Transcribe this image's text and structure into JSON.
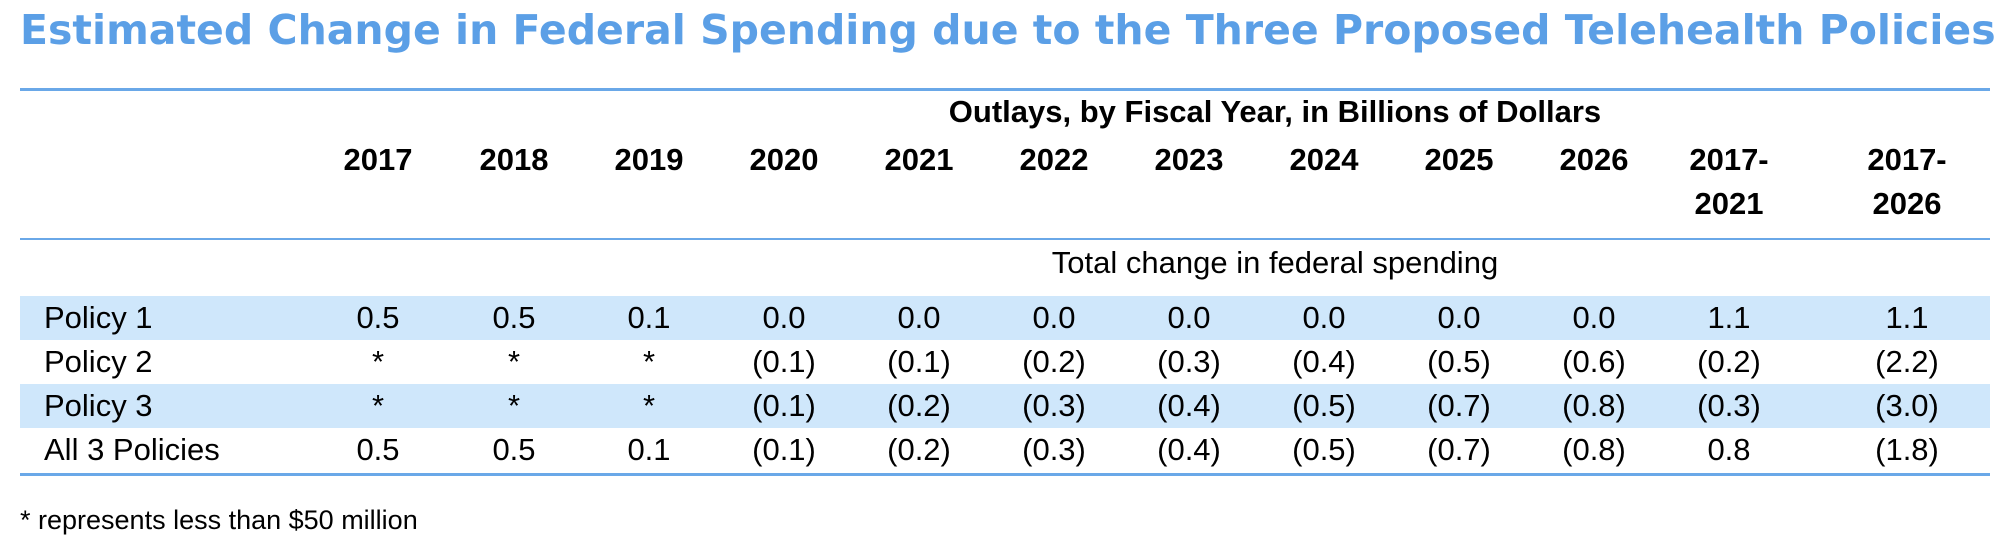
{
  "title": "Estimated Change in Federal Spending due to the Three Proposed Telehealth Policies",
  "table": {
    "super_header": "Outlays, by Fiscal Year, in Billions of Dollars",
    "columns": [
      "2017",
      "2018",
      "2019",
      "2020",
      "2021",
      "2022",
      "2023",
      "2024",
      "2025",
      "2026",
      "2017-\n2021",
      "2017-\n2026"
    ],
    "section_title": "Total change in federal spending",
    "rows": [
      {
        "label": "Policy 1",
        "values": [
          "0.5",
          "0.5",
          "0.1",
          "0.0",
          "0.0",
          "0.0",
          "0.0",
          "0.0",
          "0.0",
          "0.0",
          "1.1",
          "1.1"
        ]
      },
      {
        "label": "Policy 2",
        "values": [
          "*",
          "*",
          "*",
          "(0.1)",
          "(0.1)",
          "(0.2)",
          "(0.3)",
          "(0.4)",
          "(0.5)",
          "(0.6)",
          "(0.2)",
          "(2.2)"
        ]
      },
      {
        "label": "Policy 3",
        "values": [
          "*",
          "*",
          "*",
          "(0.1)",
          "(0.2)",
          "(0.3)",
          "(0.4)",
          "(0.5)",
          "(0.7)",
          "(0.8)",
          "(0.3)",
          "(3.0)"
        ]
      },
      {
        "label": "All 3 Policies",
        "values": [
          "0.5",
          "0.5",
          "0.1",
          "(0.1)",
          "(0.2)",
          "(0.3)",
          "(0.4)",
          "(0.5)",
          "(0.7)",
          "(0.8)",
          "0.8",
          "(1.8)"
        ]
      }
    ]
  },
  "footnote": "* represents less than $50 million",
  "colors": {
    "title": "#5b9fe6",
    "rule": "#6aa8e8",
    "row_shade": "#cfe7fb"
  }
}
